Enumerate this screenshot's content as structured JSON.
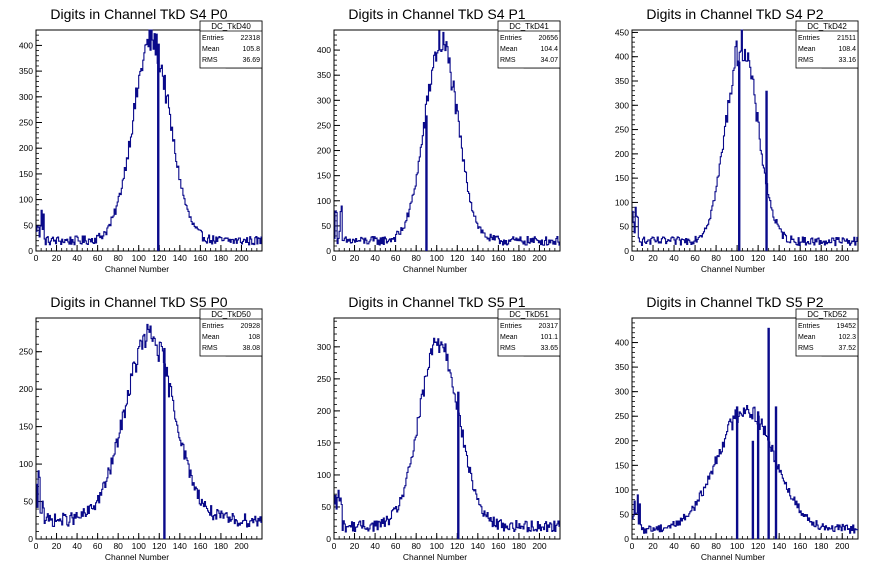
{
  "chart_data": [
    {
      "type": "histogram",
      "title": "Digits in Channel TkD S4 P0",
      "xlabel": "Channel Number",
      "xlim": [
        0,
        220
      ],
      "ylim": [
        0,
        430
      ],
      "xticks": [
        0,
        20,
        40,
        60,
        80,
        100,
        120,
        140,
        160,
        180,
        200
      ],
      "yticks": [
        50,
        100,
        150,
        200,
        250,
        300,
        350,
        400
      ],
      "stats": {
        "name": "DC_TkD40",
        "Entries": "22318",
        "Mean": "105.8",
        "RMS": "36.69"
      },
      "peak": {
        "center": 112,
        "sigma": 18,
        "height": 390,
        "base": 20
      },
      "spikes": [
        {
          "x": 119,
          "y": 390
        }
      ]
    },
    {
      "type": "histogram",
      "title": "Digits in Channel TkD S4 P1",
      "xlabel": "Channel Number",
      "xlim": [
        0,
        220
      ],
      "ylim": [
        0,
        440
      ],
      "xticks": [
        0,
        20,
        40,
        60,
        80,
        100,
        120,
        140,
        160,
        180,
        200
      ],
      "yticks": [
        50,
        100,
        150,
        200,
        250,
        300,
        350,
        400
      ],
      "stats": {
        "name": "DC_TkD41",
        "Entries": "20656",
        "Mean": "104.4",
        "RMS": "34.07"
      },
      "peak": {
        "center": 104,
        "sigma": 16,
        "height": 395,
        "base": 20
      },
      "spikes": [
        {
          "x": 90,
          "y": 270
        }
      ]
    },
    {
      "type": "histogram",
      "title": "Digits in Channel TkD S4 P2",
      "xlabel": "Channel Number",
      "xlim": [
        0,
        215
      ],
      "ylim": [
        0,
        455
      ],
      "xticks": [
        0,
        20,
        40,
        60,
        80,
        100,
        120,
        140,
        160,
        180,
        200
      ],
      "yticks": [
        50,
        100,
        150,
        200,
        250,
        300,
        350,
        400,
        450
      ],
      "stats": {
        "name": "DC_TkD42",
        "Entries": "21511",
        "Mean": "108.4",
        "RMS": "33.16"
      },
      "peak": {
        "center": 104,
        "sigma": 15,
        "height": 405,
        "base": 20
      },
      "spikes": [
        {
          "x": 102,
          "y": 390
        },
        {
          "x": 128,
          "y": 330
        }
      ]
    },
    {
      "type": "histogram",
      "title": "Digits in Channel TkD S5 P0",
      "xlabel": "Channel Number",
      "xlim": [
        0,
        220
      ],
      "ylim": [
        0,
        295
      ],
      "xticks": [
        0,
        20,
        40,
        60,
        80,
        100,
        120,
        140,
        160,
        180,
        200
      ],
      "yticks": [
        50,
        100,
        150,
        200,
        250
      ],
      "stats": {
        "name": "DC_TkD50",
        "Entries": "20928",
        "Mean": "108",
        "RMS": "38.08"
      },
      "peak": {
        "center": 110,
        "sigma": 24,
        "height": 245,
        "base": 25
      },
      "spikes": [
        {
          "x": 125,
          "y": 255
        }
      ]
    },
    {
      "type": "histogram",
      "title": "Digits in Channel TkD S5 P1",
      "xlabel": "Channel Number",
      "xlim": [
        0,
        220
      ],
      "ylim": [
        0,
        345
      ],
      "xticks": [
        0,
        20,
        40,
        60,
        80,
        100,
        120,
        140,
        160,
        180,
        200
      ],
      "yticks": [
        50,
        100,
        150,
        200,
        250,
        300
      ],
      "stats": {
        "name": "DC_TkD51",
        "Entries": "20317",
        "Mean": "101.1",
        "RMS": "33.65"
      },
      "peak": {
        "center": 102,
        "sigma": 19,
        "height": 290,
        "base": 20
      },
      "spikes": [
        {
          "x": 121,
          "y": 230
        }
      ]
    },
    {
      "type": "histogram",
      "title": "Digits in Channel TkD S5 P2",
      "xlabel": "Channel Number",
      "xlim": [
        0,
        215
      ],
      "ylim": [
        0,
        450
      ],
      "xticks": [
        0,
        20,
        40,
        60,
        80,
        100,
        120,
        140,
        160,
        180,
        200
      ],
      "yticks": [
        50,
        100,
        150,
        200,
        250,
        300,
        350,
        400
      ],
      "stats": {
        "name": "DC_TkD52",
        "Entries": "19452",
        "Mean": "102.3",
        "RMS": "37.52"
      },
      "peak": {
        "center": 108,
        "sigma": 27,
        "height": 245,
        "base": 20
      },
      "spikes": [
        {
          "x": 100,
          "y": 270
        },
        {
          "x": 115,
          "y": 200
        },
        {
          "x": 120,
          "y": 260
        },
        {
          "x": 130,
          "y": 430
        },
        {
          "x": 137,
          "y": 270
        }
      ]
    }
  ],
  "colors": {
    "line": "#0a0a8a",
    "axis": "#000000",
    "frame": "#000000"
  }
}
